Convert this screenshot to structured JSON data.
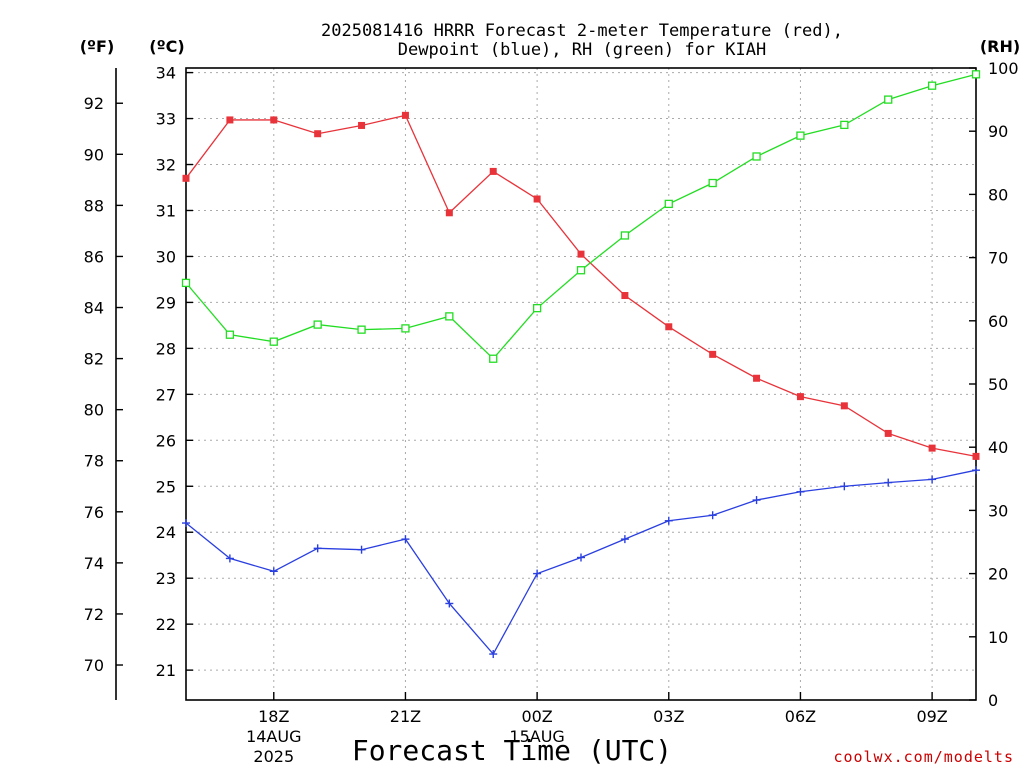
{
  "title_lines": [
    "2025081416 HRRR Forecast 2-meter Temperature (red),",
    "Dewpoint (blue), RH (green) for KIAH"
  ],
  "axis_units": {
    "fahrenheit": "(ºF)",
    "celsius": "(ºC)",
    "rh": "(RH)"
  },
  "xlabel": "Forecast Time (UTC)",
  "credit": "coolwx.com/modelts",
  "colors": {
    "temperature": "#e8333a",
    "dewpoint": "#2a3fe0",
    "rh": "#22dd22",
    "grid": "#aaaaaa",
    "axis": "#000000"
  },
  "chart_data": {
    "type": "line",
    "x": [
      "16Z",
      "17Z",
      "18Z",
      "19Z",
      "20Z",
      "21Z",
      "22Z",
      "23Z",
      "00Z",
      "01Z",
      "02Z",
      "03Z",
      "04Z",
      "05Z",
      "06Z",
      "07Z",
      "08Z",
      "09Z",
      "10Z"
    ],
    "x_tick_labels": [
      {
        "label": "18Z",
        "index": 2,
        "sub": [
          "14AUG",
          "2025"
        ]
      },
      {
        "label": "21Z",
        "index": 5,
        "sub": []
      },
      {
        "label": "00Z",
        "index": 8,
        "sub": [
          "15AUG"
        ]
      },
      {
        "label": "03Z",
        "index": 11,
        "sub": []
      },
      {
        "label": "06Z",
        "index": 14,
        "sub": []
      },
      {
        "label": "09Z",
        "index": 17,
        "sub": []
      }
    ],
    "celsius_axis": {
      "range": [
        20.35,
        34.1
      ],
      "ticks": [
        21,
        22,
        23,
        24,
        25,
        26,
        27,
        28,
        29,
        30,
        31,
        32,
        33,
        34
      ]
    },
    "fahrenheit_axis": {
      "ticks": [
        70,
        72,
        74,
        76,
        78,
        80,
        82,
        84,
        86,
        88,
        90,
        92
      ]
    },
    "rh_axis": {
      "range": [
        0,
        100
      ],
      "ticks": [
        0,
        10,
        20,
        30,
        40,
        50,
        60,
        70,
        80,
        90,
        100
      ]
    },
    "grid": true,
    "series": [
      {
        "name": "Temperature",
        "axis": "celsius",
        "marker": "filled-square",
        "values": [
          31.7,
          32.97,
          32.97,
          32.67,
          32.85,
          33.07,
          30.95,
          31.85,
          31.25,
          30.05,
          29.15,
          28.47,
          27.87,
          27.35,
          26.95,
          26.75,
          26.15,
          25.83,
          25.65
        ]
      },
      {
        "name": "Dewpoint",
        "axis": "celsius",
        "marker": "plus",
        "values": [
          24.2,
          23.43,
          23.15,
          23.65,
          23.62,
          23.85,
          22.45,
          21.35,
          23.1,
          23.45,
          23.85,
          24.25,
          24.37,
          24.7,
          24.88,
          25.0,
          25.08,
          25.15,
          25.35
        ]
      },
      {
        "name": "RH",
        "axis": "rh",
        "marker": "open-square",
        "values": [
          66,
          57.8,
          56.7,
          59.4,
          58.6,
          58.8,
          60.7,
          54,
          62,
          68,
          73.5,
          78.5,
          81.8,
          86,
          89.3,
          91,
          95,
          97.2,
          99
        ]
      }
    ]
  }
}
